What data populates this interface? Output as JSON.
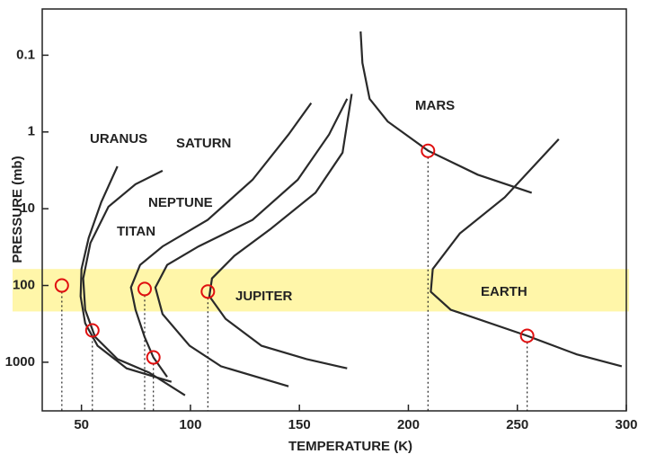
{
  "chart_data": {
    "type": "line",
    "x_label": "TEMPERATURE (K)",
    "y_label": "PRESSURE (mb)",
    "xlim": [
      32,
      300
    ],
    "xticks": [
      50,
      100,
      150,
      200,
      250,
      300
    ],
    "ylim": [
      4300,
      0.025
    ],
    "yticks": [
      0.1,
      1,
      10,
      100,
      1000
    ],
    "y_log": true,
    "highlight_band": [
      61,
      218
    ],
    "highlight_color": "#fff59a",
    "series": [
      {
        "name": "URANUS",
        "color": "#2a2a2a",
        "x": [
          66.5,
          59.1,
          53.3,
          50,
          49.6,
          51.7,
          57.4,
          70.7,
          91.3
        ],
        "values": [
          2.8,
          8.2,
          24,
          61,
          138,
          310,
          610,
          1200,
          1800
        ]
      },
      {
        "name": "NEPTUNE",
        "color": "#2a2a2a",
        "x": [
          87.2,
          74.8,
          62.4,
          54.1,
          50.8,
          51.7,
          56.2,
          66.5,
          81,
          97.5
        ],
        "values": [
          3.2,
          4.8,
          9.4,
          28,
          81,
          207,
          465,
          910,
          1360,
          2700
        ]
      },
      {
        "name": "TITAN",
        "color": "#2a2a2a",
        "x": [
          155.4,
          145,
          128.5,
          107.9,
          87.2,
          76.9,
          72.7,
          74.8,
          78.9,
          83,
          89.3
        ],
        "values": [
          0.42,
          1.08,
          4.2,
          14,
          31,
          54,
          106,
          207,
          465,
          865,
          1550
        ]
      },
      {
        "name": "SATURN",
        "color": "#2a2a2a",
        "x": [
          171.9,
          163.6,
          149.2,
          128.5,
          103.7,
          89.3,
          83.9,
          87.2,
          99.6,
          114,
          145
        ],
        "values": [
          0.37,
          1.08,
          4.2,
          14,
          31,
          54,
          106,
          236,
          610,
          1130,
          2060
        ]
      },
      {
        "name": "JUPITER",
        "color": "#2a2a2a",
        "x": [
          174,
          169.8,
          157.4,
          136.8,
          120.2,
          109.9,
          108.7,
          116.1,
          132.6,
          153.3,
          171.9
        ],
        "values": [
          0.32,
          1.86,
          6.2,
          18.3,
          41,
          81,
          138,
          272,
          610,
          910,
          1200
        ]
      },
      {
        "name": "MARS",
        "color": "#2a2a2a",
        "x": [
          178.1,
          178.9,
          182.2,
          190.5,
          209.1,
          231.8,
          256.6
        ],
        "values": [
          0.049,
          0.126,
          0.37,
          0.73,
          1.76,
          3.6,
          6.2
        ]
      },
      {
        "name": "EARTH",
        "color": "#2a2a2a",
        "x": [
          269,
          244.2,
          223.6,
          211.2,
          210.3,
          219.4,
          254.5,
          277.3,
          297.9
        ],
        "values": [
          1.24,
          7.1,
          21,
          61,
          121,
          207,
          452,
          790,
          1130
        ]
      }
    ],
    "markers": {
      "color": "#e01010",
      "x": [
        41,
        55,
        79,
        83,
        108,
        209,
        254.5
      ],
      "values": [
        100,
        385,
        111,
        865,
        120,
        1.76,
        452
      ]
    }
  }
}
